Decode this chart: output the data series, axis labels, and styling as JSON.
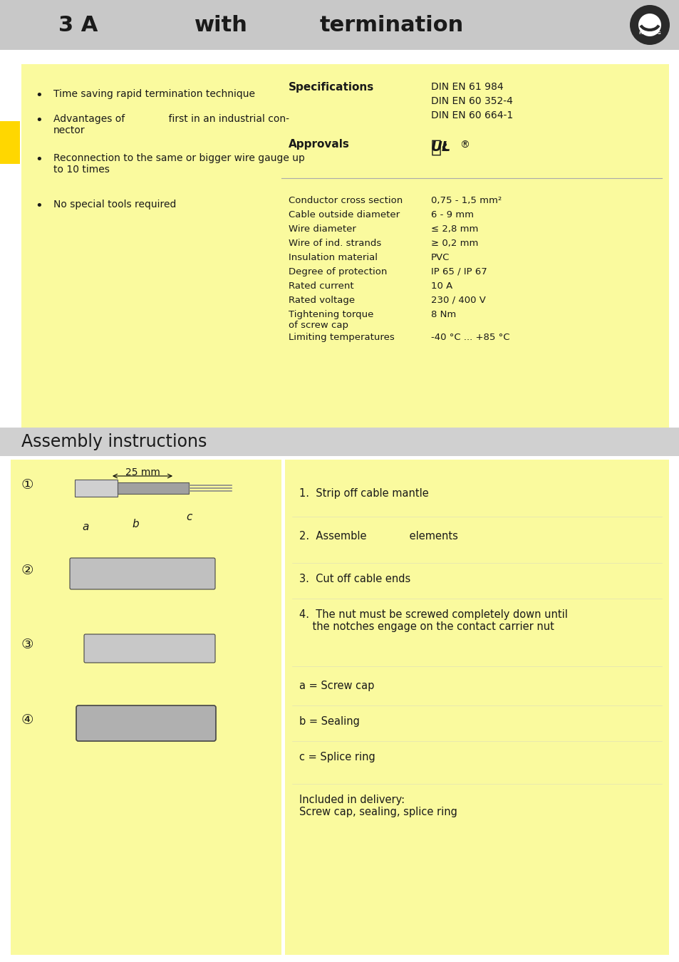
{
  "page_bg": "#ffffff",
  "header_bg": "#c8c8c8",
  "yellow_bg": "#FAFA9E",
  "accent_yellow": "#FFD700",
  "header_text_color": "#1a1a1a",
  "body_text_color": "#1a1a1a",
  "header_title": "3 A",
  "header_with": "with",
  "header_termination": "termination",
  "left_bullets": [
    "Time saving rapid termination technique",
    "Advantages of              first in an industrial con-\nnector",
    "Reconnection to the same or bigger wire gauge up\nto 10 times",
    "No special tools required"
  ],
  "spec_label": "Specifications",
  "spec_values": [
    "DIN EN 61 984",
    "DIN EN 60 352-4",
    "DIN EN 60 664-1"
  ],
  "approval_label": "Approvals",
  "tech_params": [
    [
      "Conductor cross section",
      "0,75 - 1,5 mm²"
    ],
    [
      "Cable outside diameter",
      "6 - 9 mm"
    ],
    [
      "Wire diameter",
      "≤ 2,8 mm"
    ],
    [
      "Wire of ind. strands",
      "≥ 0,2 mm"
    ],
    [
      "Insulation material",
      "PVC"
    ],
    [
      "Degree of protection",
      "IP 65 / IP 67"
    ],
    [
      "Rated current",
      "10 A"
    ],
    [
      "Rated voltage",
      "230 / 400 V"
    ],
    [
      "Tightening torque\nof screw cap",
      "8 Nm"
    ],
    [
      "Limiting temperatures",
      "-40 °C ... +85 °C"
    ]
  ],
  "assembly_title": "Assembly instructions",
  "assembly_bg": "#d0d0d0",
  "assembly_steps": [
    "1.  Strip off cable mantle",
    "2.  Assemble            elements",
    "3.  Cut off cable ends",
    "4.  The nut must be screwed completely down until\n    the notches engage on the contact carrier nut",
    "",
    "a = Screw cap",
    "",
    "b = Sealing",
    "",
    "c = Splice ring",
    "",
    "Included in delivery:\nScrew cap, sealing, splice ring"
  ],
  "dim_label": "25 mm"
}
